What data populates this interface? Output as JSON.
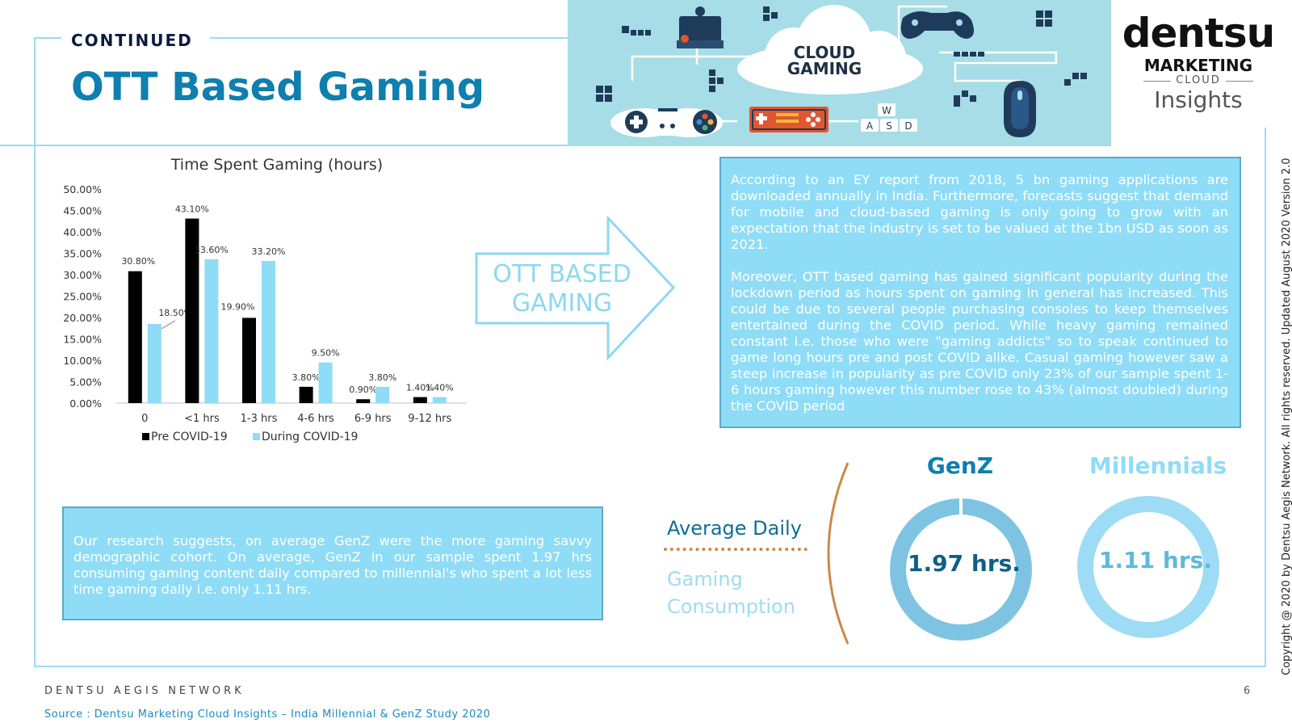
{
  "header": {
    "continued": "CONTINUED",
    "title": "OTT Based Gaming"
  },
  "banner": {
    "cloud_line1": "CLOUD",
    "cloud_line2": "GAMING",
    "key_w": "W",
    "key_a": "A",
    "key_s": "S",
    "key_d": "D"
  },
  "logo": {
    "brand": "dentsu",
    "marketing": "MARKETING",
    "cloud": "CLOUD",
    "insights": "Insights"
  },
  "copyright": "Copyright @ 2020 by Dentsu Aegis Network. All rights reserved. Updated August 2020 Version 2.0",
  "chart_data": {
    "type": "bar",
    "title": "Time Spent Gaming (hours)",
    "categories": [
      "0",
      "<1 hrs",
      "1-3 hrs",
      "4-6 hrs",
      "6-9 hrs",
      "9-12 hrs"
    ],
    "series": [
      {
        "name": "Pre COVID-19",
        "values": [
          30.8,
          43.1,
          19.9,
          3.8,
          0.9,
          1.4
        ],
        "labels": [
          "30.80%",
          "43.10%",
          "19.90%",
          "3.80%",
          "0.90%",
          "1.40%"
        ],
        "color": "#000000"
      },
      {
        "name": "During COVID-19",
        "values": [
          18.5,
          33.6,
          33.2,
          9.5,
          3.8,
          1.4
        ],
        "labels": [
          "18.50%",
          "33.60%",
          "33.20%",
          "9.50%",
          "3.80%",
          "1.40%"
        ],
        "color": "#8fdcf7"
      }
    ],
    "y_ticks": [
      "0.00%",
      "5.00%",
      "10.00%",
      "15.00%",
      "20.00%",
      "25.00%",
      "30.00%",
      "35.00%",
      "40.00%",
      "45.00%",
      "50.00%"
    ],
    "ylim": [
      0,
      50
    ],
    "legend": "bottom-left",
    "grid": false
  },
  "arrow": {
    "line1": "OTT BASED",
    "line2": "GAMING"
  },
  "right_box": {
    "para1": "According to an EY report from 2018, 5 bn gaming applications are downloaded annually in India. Furthermore, forecasts suggest that demand for mobile and cloud-based gaming is only going to grow with an expectation that the industry is set to be valued at the 1bn USD as soon as 2021.",
    "para2": "Moreover, OTT based gaming has gained significant popularity during the lockdown period as hours spent on gaming in general has increased. This could be due to several people purchasing consoles to keep themselves entertained during the COVID period. While heavy gaming remained constant i.e. those who were \"gaming addicts\" so to speak continued to game long hours pre and post COVID alike. Casual gaming however saw a steep increase in popularity as pre COVID only 23% of our sample spent 1-6 hours gaming however this number rose to 43% (almost doubled) during the COVID period"
  },
  "left_box": {
    "text": "Our research suggests, on average GenZ were the more gaming savvy demographic cohort. On average, GenZ in our sample spent 1.97 hrs consuming gaming content daily compared to millennial's who spent a lot less time gaming daily i.e. only 1.11 hrs."
  },
  "consumption": {
    "average_daily": "Average Daily",
    "gaming": "Gaming",
    "consumption": "Consumption",
    "genz": {
      "label": "GenZ",
      "value": "1.97 hrs.",
      "color": "#7ec4e2"
    },
    "millennials": {
      "label": "Millennials",
      "value": "1.11 hrs.",
      "color": "#9ddcf4"
    }
  },
  "footer": {
    "network": "DENTSU AEGIS NETWORK",
    "page_number": "6",
    "source": "Source : Dentsu Marketing Cloud Insights – India Millennial & GenZ Study 2020"
  }
}
